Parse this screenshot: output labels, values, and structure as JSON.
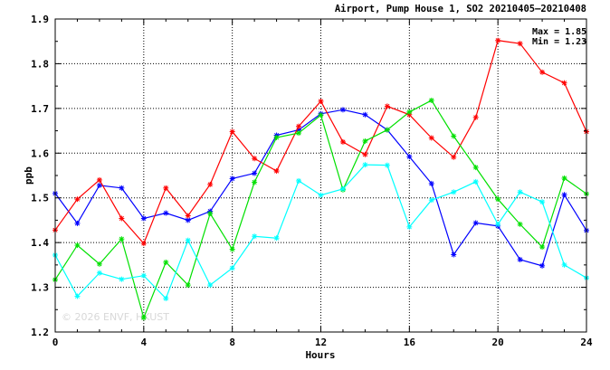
{
  "chart_data": {
    "type": "line",
    "title": "Airport, Pump House 1, SO2 20210405–20210408",
    "xlabel": "Hours",
    "ylabel": "ppb",
    "xlim": [
      0,
      24
    ],
    "ylim": [
      1.2,
      1.9
    ],
    "x_ticks": [
      "0",
      "4",
      "8",
      "12",
      "16",
      "20",
      "24"
    ],
    "y_ticks": [
      "1.2",
      "1.3",
      "1.4",
      "1.5",
      "1.6",
      "1.7",
      "1.8",
      "1.9"
    ],
    "grid": true,
    "x": [
      0,
      1,
      2,
      3,
      4,
      5,
      6,
      7,
      8,
      9,
      10,
      11,
      12,
      13,
      14,
      15,
      16,
      17,
      18,
      19,
      20,
      21,
      22,
      23,
      24
    ],
    "series": [
      {
        "color": "#0000ff",
        "values": [
          1.51,
          1.443,
          1.528,
          1.522,
          1.454,
          1.466,
          1.45,
          1.47,
          1.543,
          1.555,
          1.64,
          1.652,
          1.688,
          1.697,
          1.686,
          1.652,
          1.592,
          1.532,
          1.373,
          1.444,
          1.437,
          1.362,
          1.348,
          1.507,
          1.427
        ]
      },
      {
        "color": "#ff0000",
        "values": [
          1.428,
          1.497,
          1.54,
          1.454,
          1.398,
          1.522,
          1.46,
          1.53,
          1.648,
          1.588,
          1.56,
          1.66,
          1.716,
          1.625,
          1.597,
          1.705,
          1.686,
          1.634,
          1.591,
          1.68,
          1.852,
          1.845,
          1.781,
          1.757,
          1.648
        ]
      },
      {
        "color": "#00e000",
        "values": [
          1.317,
          1.394,
          1.352,
          1.408,
          1.232,
          1.356,
          1.305,
          1.465,
          1.385,
          1.535,
          1.635,
          1.645,
          1.685,
          1.518,
          1.627,
          1.652,
          1.692,
          1.718,
          1.638,
          1.568,
          1.497,
          1.441,
          1.39,
          1.544,
          1.509
        ]
      },
      {
        "color": "#00ffff",
        "values": [
          1.372,
          1.28,
          1.332,
          1.318,
          1.326,
          1.275,
          1.405,
          1.305,
          1.343,
          1.414,
          1.41,
          1.538,
          1.506,
          1.52,
          1.574,
          1.573,
          1.435,
          1.495,
          1.513,
          1.536,
          1.441,
          1.513,
          1.491,
          1.35,
          1.321
        ]
      }
    ],
    "annotations": [
      "Max = 1.85",
      "Min = 1.23"
    ],
    "watermark": "© 2026  ENVF, HKUST"
  }
}
